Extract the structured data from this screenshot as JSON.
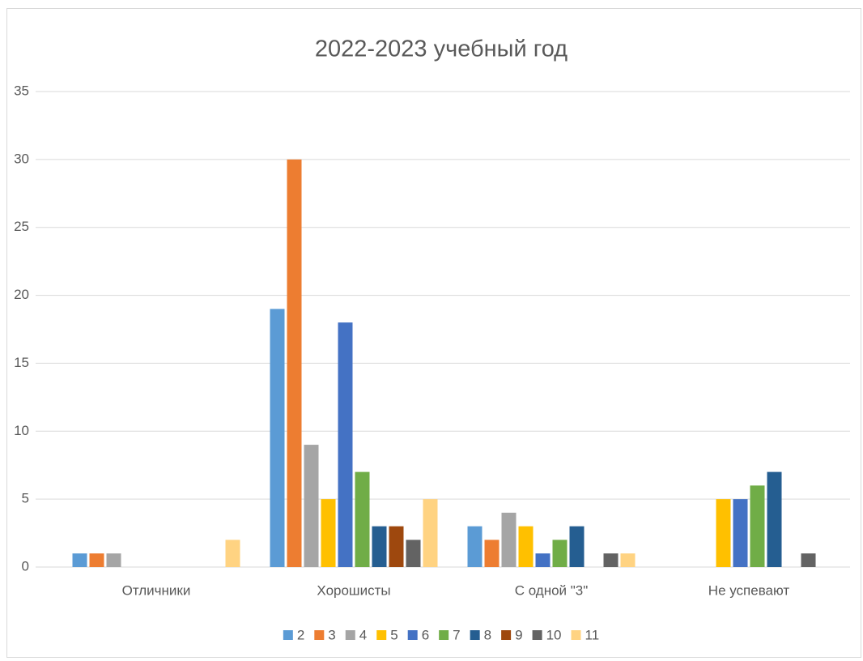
{
  "chart_data": {
    "type": "bar",
    "title": "2022-2023 учебный год",
    "categories": [
      "Отличники",
      "Хорошисты",
      "С одной \"3\"",
      "Не успевают"
    ],
    "series": [
      {
        "name": "2",
        "color": "#5b9bd5",
        "values": [
          1,
          19,
          3,
          0
        ]
      },
      {
        "name": "3",
        "color": "#ed7d31",
        "values": [
          1,
          30,
          2,
          0
        ]
      },
      {
        "name": "4",
        "color": "#a5a5a5",
        "values": [
          1,
          9,
          4,
          0
        ]
      },
      {
        "name": "5",
        "color": "#ffc000",
        "values": [
          0,
          5,
          3,
          5
        ]
      },
      {
        "name": "6",
        "color": "#4472c4",
        "values": [
          0,
          18,
          1,
          5
        ]
      },
      {
        "name": "7",
        "color": "#70ad47",
        "values": [
          0,
          7,
          2,
          6
        ]
      },
      {
        "name": "8",
        "color": "#255e91",
        "values": [
          0,
          3,
          3,
          7
        ]
      },
      {
        "name": "9",
        "color": "#9e480e",
        "values": [
          0,
          3,
          0,
          0
        ]
      },
      {
        "name": "10",
        "color": "#636363",
        "values": [
          0,
          2,
          1,
          1
        ]
      },
      {
        "name": "11",
        "color": "#ffd382",
        "values": [
          2,
          5,
          1,
          0
        ]
      }
    ],
    "ylim": [
      0,
      35
    ],
    "yticks": [
      0,
      5,
      10,
      15,
      20,
      25,
      30,
      35
    ],
    "grid": true,
    "legend": "bottom"
  }
}
